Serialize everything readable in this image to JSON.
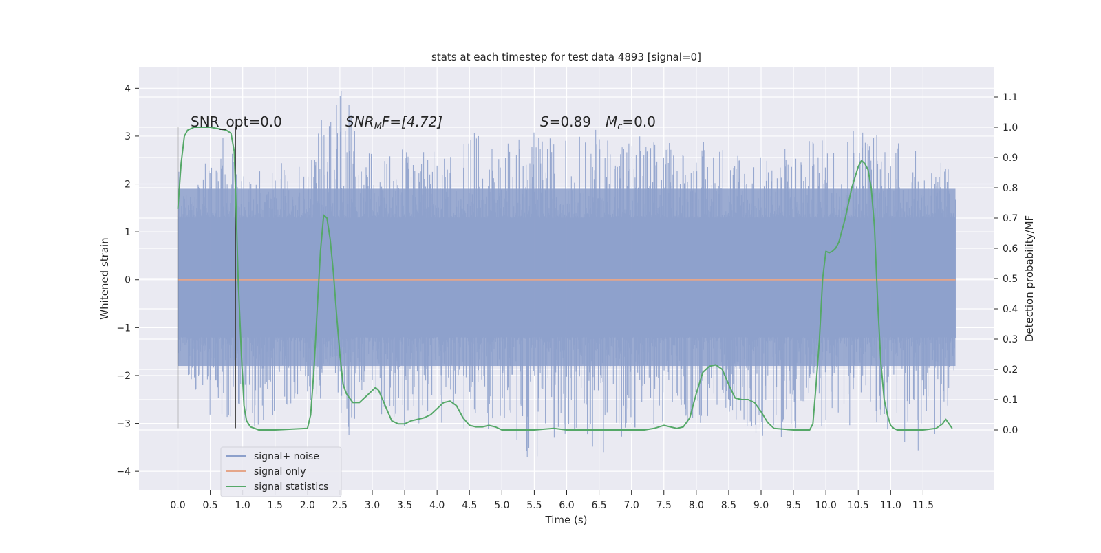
{
  "chart_data": {
    "type": "line",
    "title": "stats at each timestep for test data 4893 [signal=0]",
    "xlabel": "Time (s)",
    "ylabel": "Whitened strain",
    "ylabel_right": "Detection probability/MF",
    "xlim": [
      -0.6,
      12.6
    ],
    "ylim": [
      -4.4,
      4.45
    ],
    "ylim_right": [
      -0.2,
      1.2
    ],
    "x_ticks": [
      "0.0",
      "0.5",
      "1.0",
      "1.5",
      "2.0",
      "2.5",
      "3.0",
      "3.5",
      "4.0",
      "4.5",
      "5.0",
      "5.5",
      "6.0",
      "6.5",
      "7.0",
      "7.5",
      "8.0",
      "8.5",
      "9.0",
      "9.5",
      "10.0",
      "10.5",
      "11.0",
      "11.5"
    ],
    "y_ticks": [
      "4",
      "3",
      "2",
      "1",
      "0",
      "−1",
      "−2",
      "−3",
      "−4"
    ],
    "y_right_ticks": [
      "1.1",
      "1.0",
      "0.9",
      "0.8",
      "0.7",
      "0.6",
      "0.5",
      "0.4",
      "0.3",
      "0.2",
      "0.1",
      "0.0"
    ],
    "grid": true,
    "legend_position": "lower-left",
    "annotations": {
      "snr_opt": "SNR_opt=0.0",
      "snr_mf_main": "SNR",
      "snr_mf_sub": "M",
      "snr_mf_rest": "F=[4.72]",
      "s_main": "S",
      "s_rest": "=0.89",
      "mc_main": "M",
      "mc_sub": "c",
      "mc_rest": "=0.0"
    },
    "markers": [
      {
        "x": 0.0,
        "y_range": [
          -3.1,
          3.2
        ]
      },
      {
        "x": 0.89,
        "y_range": [
          -3.1,
          3.2
        ]
      }
    ],
    "series": [
      {
        "name": "signal+ noise",
        "color": "#8da0cb",
        "axis": "left",
        "x_range": [
          0.0,
          12.0
        ],
        "envelope": [
          {
            "x": 0.0,
            "hi": 2.3,
            "lo": -2.0
          },
          {
            "x": 0.5,
            "hi": 3.2,
            "lo": -2.9
          },
          {
            "x": 1.0,
            "hi": 2.6,
            "lo": -3.3
          },
          {
            "x": 1.5,
            "hi": 2.5,
            "lo": -2.8
          },
          {
            "x": 2.0,
            "hi": 2.7,
            "lo": -2.5
          },
          {
            "x": 2.3,
            "hi": 3.7,
            "lo": -2.7
          },
          {
            "x": 2.6,
            "hi": 4.1,
            "lo": -3.3
          },
          {
            "x": 3.0,
            "hi": 2.6,
            "lo": -2.7
          },
          {
            "x": 3.5,
            "hi": 2.9,
            "lo": -3.2
          },
          {
            "x": 4.0,
            "hi": 2.7,
            "lo": -3.2
          },
          {
            "x": 4.5,
            "hi": 3.1,
            "lo": -3.3
          },
          {
            "x": 5.0,
            "hi": 2.9,
            "lo": -3.0
          },
          {
            "x": 5.5,
            "hi": 3.1,
            "lo": -3.9
          },
          {
            "x": 6.0,
            "hi": 3.0,
            "lo": -3.2
          },
          {
            "x": 6.5,
            "hi": 3.2,
            "lo": -3.7
          },
          {
            "x": 7.0,
            "hi": 3.2,
            "lo": -3.3
          },
          {
            "x": 7.5,
            "hi": 2.9,
            "lo": -3.0
          },
          {
            "x": 8.0,
            "hi": 2.9,
            "lo": -3.2
          },
          {
            "x": 8.5,
            "hi": 3.0,
            "lo": -2.8
          },
          {
            "x": 9.0,
            "hi": 2.6,
            "lo": -3.4
          },
          {
            "x": 9.5,
            "hi": 2.9,
            "lo": -3.3
          },
          {
            "x": 10.0,
            "hi": 3.0,
            "lo": -3.1
          },
          {
            "x": 10.5,
            "hi": 3.5,
            "lo": -3.1
          },
          {
            "x": 11.0,
            "hi": 3.1,
            "lo": -3.2
          },
          {
            "x": 11.5,
            "hi": 2.6,
            "lo": -4.0
          },
          {
            "x": 12.0,
            "hi": 2.4,
            "lo": -2.5
          }
        ]
      },
      {
        "name": "signal only",
        "color": "#e5a68a",
        "axis": "left",
        "x": [
          0.0,
          12.0
        ],
        "values": [
          0.0,
          0.0
        ]
      },
      {
        "name": "signal statistics",
        "color": "#55a868",
        "axis": "right",
        "x": [
          0.0,
          0.05,
          0.1,
          0.15,
          0.25,
          0.5,
          0.75,
          0.82,
          0.87,
          0.9,
          0.93,
          0.98,
          1.02,
          1.06,
          1.12,
          1.25,
          1.5,
          2.0,
          2.05,
          2.1,
          2.15,
          2.2,
          2.25,
          2.3,
          2.35,
          2.4,
          2.45,
          2.5,
          2.55,
          2.6,
          2.7,
          2.8,
          2.9,
          3.0,
          3.05,
          3.1,
          3.2,
          3.3,
          3.4,
          3.5,
          3.6,
          3.7,
          3.8,
          3.9,
          4.0,
          4.1,
          4.2,
          4.3,
          4.4,
          4.5,
          4.6,
          4.7,
          4.8,
          4.9,
          5.0,
          5.5,
          5.8,
          6.0,
          6.5,
          7.0,
          7.2,
          7.35,
          7.5,
          7.6,
          7.7,
          7.8,
          7.9,
          8.0,
          8.1,
          8.2,
          8.3,
          8.4,
          8.5,
          8.6,
          8.7,
          8.8,
          8.9,
          9.0,
          9.1,
          9.2,
          9.5,
          9.75,
          9.8,
          9.85,
          9.9,
          9.95,
          10.0,
          10.05,
          10.1,
          10.15,
          10.2,
          10.3,
          10.4,
          10.5,
          10.55,
          10.6,
          10.65,
          10.7,
          10.75,
          10.8,
          10.85,
          10.9,
          10.95,
          11.0,
          11.05,
          11.1,
          11.2,
          11.5,
          11.7,
          11.8,
          11.85,
          11.9,
          11.95
        ],
        "values": [
          0.73,
          0.88,
          0.97,
          0.99,
          1.0,
          1.0,
          0.99,
          0.98,
          0.92,
          0.72,
          0.5,
          0.25,
          0.08,
          0.03,
          0.01,
          0.0,
          0.0,
          0.005,
          0.05,
          0.2,
          0.4,
          0.59,
          0.71,
          0.7,
          0.63,
          0.52,
          0.38,
          0.25,
          0.15,
          0.12,
          0.09,
          0.09,
          0.11,
          0.13,
          0.14,
          0.13,
          0.08,
          0.03,
          0.02,
          0.02,
          0.03,
          0.035,
          0.04,
          0.05,
          0.07,
          0.09,
          0.095,
          0.08,
          0.04,
          0.015,
          0.01,
          0.01,
          0.015,
          0.01,
          0.0,
          0.0,
          0.005,
          0.0,
          0.0,
          0.0,
          0.0,
          0.005,
          0.015,
          0.01,
          0.005,
          0.01,
          0.04,
          0.12,
          0.19,
          0.21,
          0.215,
          0.2,
          0.15,
          0.105,
          0.1,
          0.1,
          0.09,
          0.06,
          0.025,
          0.005,
          0.0,
          0.0,
          0.02,
          0.15,
          0.3,
          0.5,
          0.59,
          0.585,
          0.59,
          0.6,
          0.62,
          0.7,
          0.8,
          0.87,
          0.89,
          0.88,
          0.86,
          0.8,
          0.67,
          0.42,
          0.22,
          0.1,
          0.05,
          0.015,
          0.005,
          0.0,
          0.0,
          0.0,
          0.005,
          0.02,
          0.035,
          0.02,
          0.005
        ]
      }
    ]
  }
}
